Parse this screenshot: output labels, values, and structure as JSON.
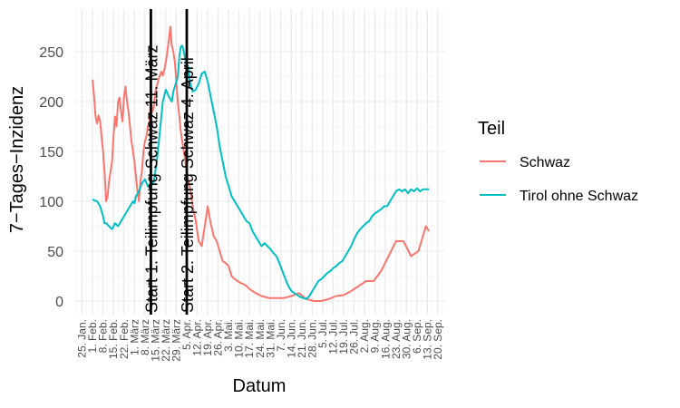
{
  "chart_data": {
    "type": "line",
    "xlabel": "Datum",
    "ylabel": "7−Tages−Inzidenz",
    "ylim": [
      -12,
      285
    ],
    "y_ticks": [
      0,
      50,
      100,
      150,
      200,
      250
    ],
    "grid": true,
    "legend_placement": "right",
    "legend_title": "Teil",
    "x_tick_labels": [
      "25. Jan.",
      "1. Feb.",
      "8. Feb.",
      "15. Feb.",
      "22. Feb.",
      "1. März",
      "8. März",
      "15. März",
      "22. März",
      "29. März",
      "5. Apr.",
      "12. Apr.",
      "19. Apr.",
      "26. Apr.",
      "3. Mai.",
      "10. Mai.",
      "17. Mai.",
      "24. Mai.",
      "31. Mai.",
      "7. Jun.",
      "14. Jun.",
      "21. Jun.",
      "28. Jun.",
      "5. Jul.",
      "12. Jul.",
      "19. Jul.",
      "26. Jul.",
      "2. Aug.",
      "9. Aug.",
      "16. Aug.",
      "23. Aug.",
      "30. Aug.",
      "6. Sep.",
      "13. Sep.",
      "20. Sep."
    ],
    "x_ticks_days": [
      0,
      7,
      14,
      21,
      28,
      35,
      42,
      49,
      56,
      63,
      70,
      77,
      84,
      91,
      98,
      105,
      112,
      119,
      126,
      133,
      140,
      147,
      154,
      161,
      168,
      175,
      182,
      189,
      196,
      203,
      210,
      217,
      224,
      231,
      238
    ],
    "annotations": [
      {
        "day": 46,
        "label": "Start 1. Teilimpfung Schwaz 11. März"
      },
      {
        "day": 70,
        "label": "Start 2. Teilimpfung Schwaz 4. April"
      }
    ],
    "series": [
      {
        "name": "Schwaz",
        "color": "#F8766D",
        "x": [
          7,
          8,
          9,
          10,
          11,
          12,
          13,
          14,
          15,
          16,
          17,
          18,
          19,
          20,
          21,
          22,
          23,
          24,
          25,
          26,
          27,
          28,
          29,
          30,
          31,
          32,
          33,
          34,
          35,
          36,
          37,
          38,
          39,
          40,
          41,
          42,
          43,
          44,
          45,
          46,
          47,
          48,
          49,
          50,
          51,
          52,
          53,
          54,
          55,
          56,
          57,
          58,
          59,
          60,
          61,
          62,
          63,
          64,
          65,
          66,
          67,
          68,
          69,
          70,
          71,
          72,
          74,
          76,
          78,
          80,
          82,
          84,
          86,
          88,
          90,
          92,
          94,
          96,
          98,
          100,
          102,
          104,
          106,
          108,
          110,
          112,
          114,
          116,
          120,
          125,
          130,
          135,
          140,
          145,
          150,
          155,
          160,
          165,
          170,
          175,
          180,
          185,
          190,
          195,
          200,
          205,
          210,
          215,
          220,
          225,
          230,
          232
        ],
        "y": [
          222,
          205,
          185,
          178,
          186,
          180,
          165,
          150,
          130,
          100,
          105,
          120,
          130,
          140,
          165,
          185,
          175,
          200,
          204,
          190,
          180,
          205,
          215,
          200,
          190,
          175,
          160,
          150,
          140,
          125,
          110,
          100,
          120,
          130,
          150,
          160,
          165,
          175,
          180,
          200,
          190,
          195,
          210,
          215,
          222,
          226,
          230,
          226,
          232,
          240,
          250,
          262,
          275,
          256,
          250,
          240,
          220,
          200,
          185,
          170,
          160,
          150,
          140,
          130,
          120,
          115,
          95,
          80,
          60,
          55,
          75,
          95,
          78,
          65,
          60,
          50,
          40,
          38,
          35,
          25,
          22,
          20,
          18,
          17,
          15,
          12,
          10,
          8,
          5,
          3,
          3,
          3,
          5,
          8,
          2,
          0,
          0,
          2,
          5,
          6,
          10,
          15,
          20,
          20,
          30,
          45,
          60,
          60,
          45,
          50,
          75,
          70
        ]
      },
      {
        "name": "Tirol ohne Schwaz",
        "color": "#00BFC4",
        "x": [
          7,
          8,
          10,
          12,
          14,
          15,
          16,
          18,
          20,
          22,
          24,
          26,
          28,
          30,
          32,
          34,
          35,
          36,
          38,
          40,
          42,
          44,
          46,
          48,
          50,
          52,
          53,
          54,
          56,
          58,
          60,
          61,
          62,
          63,
          64,
          65,
          66,
          67,
          68,
          69,
          70,
          71,
          72,
          74,
          76,
          78,
          80,
          82,
          84,
          86,
          88,
          90,
          92,
          94,
          96,
          98,
          100,
          102,
          104,
          106,
          108,
          110,
          112,
          114,
          116,
          118,
          120,
          122,
          124,
          126,
          128,
          130,
          132,
          134,
          136,
          138,
          140,
          142,
          144,
          146,
          148,
          150,
          152,
          154,
          156,
          158,
          160,
          162,
          164,
          166,
          168,
          170,
          172,
          174,
          176,
          178,
          180,
          182,
          184,
          186,
          188,
          190,
          192,
          194,
          196,
          198,
          200,
          202,
          204,
          206,
          208,
          210,
          212,
          214,
          216,
          218,
          220,
          222,
          224,
          226,
          228,
          230,
          232
        ],
        "y": [
          102,
          101,
          100,
          95,
          85,
          78,
          78,
          75,
          72,
          78,
          75,
          80,
          85,
          90,
          95,
          100,
          98,
          105,
          110,
          118,
          122,
          115,
          115,
          120,
          140,
          170,
          185,
          200,
          212,
          205,
          200,
          210,
          215,
          220,
          225,
          245,
          255,
          256,
          250,
          242,
          237,
          235,
          220,
          210,
          212,
          218,
          228,
          230,
          220,
          205,
          190,
          175,
          155,
          140,
          125,
          115,
          105,
          100,
          95,
          90,
          85,
          80,
          78,
          70,
          65,
          60,
          55,
          58,
          55,
          52,
          48,
          45,
          38,
          30,
          22,
          15,
          10,
          8,
          6,
          4,
          3,
          2,
          5,
          10,
          15,
          20,
          22,
          25,
          28,
          30,
          33,
          35,
          38,
          40,
          45,
          50,
          55,
          62,
          68,
          72,
          75,
          78,
          80,
          85,
          88,
          90,
          92,
          95,
          95,
          100,
          105,
          110,
          112,
          110,
          112,
          108,
          112,
          110,
          113,
          110,
          112,
          112,
          112
        ]
      }
    ]
  }
}
